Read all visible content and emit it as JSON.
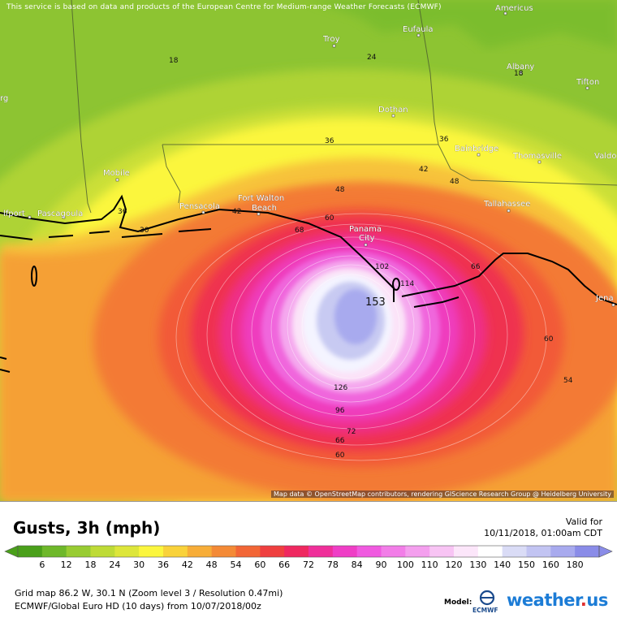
{
  "banner": "This service is based on data and products of the European Centre for Medium-range Weather Forecasts (ECMWF)",
  "attribution": "Map data © OpenStreetMap contributors, rendering GIScience Research Group @ Heidelberg University",
  "title": "Gusts, 3h (mph)",
  "valid_label": "Valid for",
  "valid_value": "10/11/2018, 01:00am CDT",
  "footer_line1": "Grid map 86.2 W, 30.1 N (Zoom level 3 / Resolution 0.47mi)",
  "footer_line2": "ECMWF/Global Euro HD (10 days) from 10/07/2018/00z",
  "model_label": "Model:",
  "model_logo_text": "ECMWF",
  "brand_name": "weather",
  "brand_dot": ".",
  "brand_tld": "us",
  "scale": {
    "ticks": [
      "6",
      "12",
      "18",
      "24",
      "30",
      "36",
      "42",
      "48",
      "54",
      "60",
      "66",
      "72",
      "78",
      "84",
      "90",
      "100",
      "110",
      "120",
      "130",
      "140",
      "150",
      "160",
      "180"
    ],
    "colors": [
      "#4aa01a",
      "#6eb82a",
      "#98cc32",
      "#bedb36",
      "#dde63a",
      "#fbf63e",
      "#f9d23a",
      "#f7ad38",
      "#f48a36",
      "#f26636",
      "#ef3f3f",
      "#ef2860",
      "#ef2f9a",
      "#ef3ec6",
      "#f05ae0",
      "#f27de8",
      "#f49fee",
      "#f8c4f4",
      "#fce6fa",
      "#ffffff",
      "#dadcf6",
      "#c2c4f2",
      "#a8aaee",
      "#8a8ce8"
    ]
  },
  "cities": [
    {
      "name": "Americus"
    },
    {
      "name": "Troy"
    },
    {
      "name": "Eufaula"
    },
    {
      "name": "Albany"
    },
    {
      "name": "Tifton"
    },
    {
      "name": "Dothan"
    },
    {
      "name": "Bainbridge"
    },
    {
      "name": "Thomasville"
    },
    {
      "name": "Valdo"
    },
    {
      "name": "Mobile"
    },
    {
      "name": "Pensacola"
    },
    {
      "name": "Fort Walton"
    },
    {
      "name": "Beach"
    },
    {
      "name": "Tallahassee"
    },
    {
      "name": "lfport"
    },
    {
      "name": "Pascagoula"
    },
    {
      "name": "Panama"
    },
    {
      "name": "City"
    },
    {
      "name": "rg"
    },
    {
      "name": "Jena"
    }
  ],
  "contour_labels": [
    "18",
    "24",
    "18",
    "36",
    "36",
    "42",
    "48",
    "48",
    "42",
    "36",
    "30",
    "60",
    "68",
    "66",
    "102",
    "114",
    "153",
    "60",
    "54",
    "126",
    "96",
    "72",
    "66",
    "60"
  ]
}
